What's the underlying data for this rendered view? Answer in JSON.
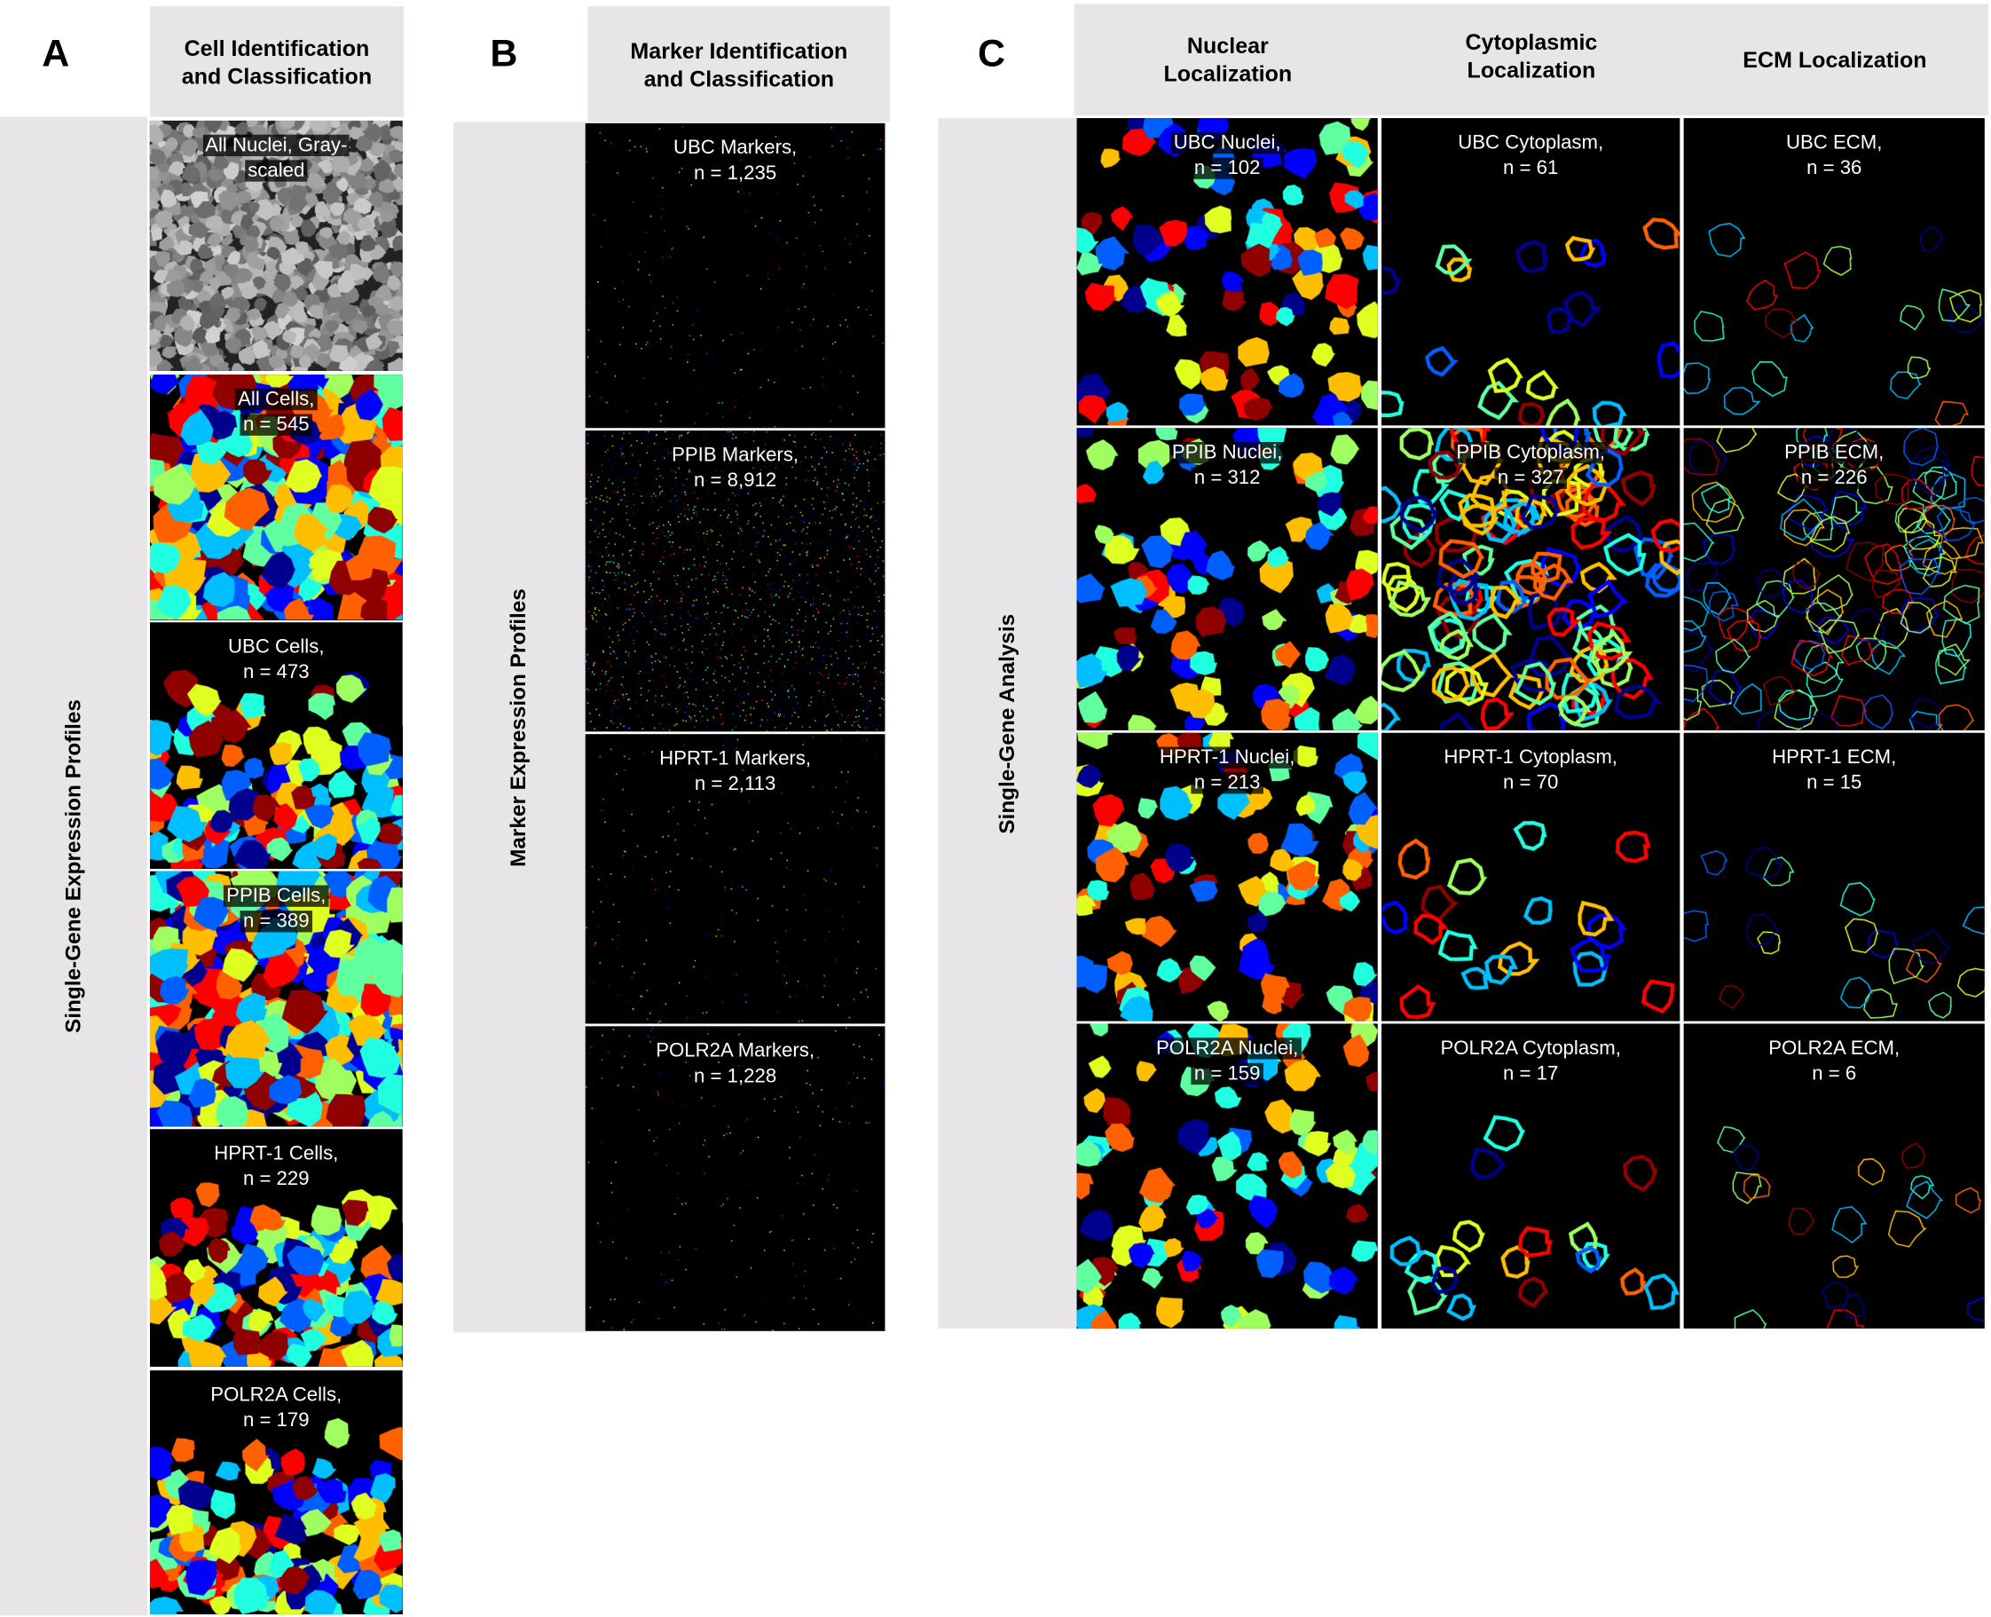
{
  "panels": {
    "A": {
      "letter": "A",
      "header": [
        "Cell Identification",
        "and Classification"
      ],
      "side_label": "Single-Gene Expression Profiles",
      "tiles": [
        {
          "line1": "All Nuclei, Gray-",
          "line2": "scaled",
          "kind": "grayscale"
        },
        {
          "line1": "All Cells,",
          "line2": "n = 545",
          "kind": "cells"
        },
        {
          "line1": "UBC Cells,",
          "line2": "n = 473",
          "kind": "sparsecells"
        },
        {
          "line1": "PPIB Cells,",
          "line2": "n = 389",
          "kind": "cells"
        },
        {
          "line1": "HPRT-1 Cells,",
          "line2": "n = 229",
          "kind": "sparsecells"
        },
        {
          "line1": "POLR2A Cells,",
          "line2": "n = 179",
          "kind": "sparsecells"
        }
      ]
    },
    "B": {
      "letter": "B",
      "header": [
        "Marker Identification",
        "and Classification"
      ],
      "side_label": "Marker Expression Profiles",
      "tiles": [
        {
          "line1": "UBC Markers,",
          "line2": "n = 1,235",
          "kind": "markers"
        },
        {
          "line1": "PPIB Markers,",
          "line2": "n = 8,912",
          "kind": "densemarkers"
        },
        {
          "line1": "HPRT-1 Markers,",
          "line2": "n = 2,113",
          "kind": "markers"
        },
        {
          "line1": "POLR2A Markers,",
          "line2": "n = 1,228",
          "kind": "markers"
        }
      ]
    },
    "C": {
      "letter": "C",
      "columns": [
        [
          "Nuclear",
          "Localization"
        ],
        [
          "Cytoplasmic",
          "Localization"
        ],
        [
          "ECM Localization",
          ""
        ]
      ],
      "side_label": "Single-Gene Analysis",
      "rows": [
        [
          {
            "line1": "UBC Nuclei,",
            "line2": "n = 102",
            "kind": "nuclei"
          },
          {
            "line1": "UBC Cytoplasm,",
            "line2": "n = 61",
            "kind": "rings"
          },
          {
            "line1": "UBC ECM,",
            "line2": "n = 36",
            "kind": "thinrings"
          }
        ],
        [
          {
            "line1": "PPIB Nuclei,",
            "line2": "n = 312",
            "kind": "nuclei"
          },
          {
            "line1": "PPIB Cytoplasm,",
            "line2": "n = 327",
            "kind": "denserings"
          },
          {
            "line1": "PPIB ECM,",
            "line2": "n = 226",
            "kind": "densethin"
          }
        ],
        [
          {
            "line1": "HPRT-1 Nuclei,",
            "line2": "n = 213",
            "kind": "nuclei"
          },
          {
            "line1": "HPRT-1 Cytoplasm,",
            "line2": "n = 70",
            "kind": "rings"
          },
          {
            "line1": "HPRT-1 ECM,",
            "line2": "n = 15",
            "kind": "thinrings"
          }
        ],
        [
          {
            "line1": "POLR2A Nuclei,",
            "line2": "n = 159",
            "kind": "nuclei"
          },
          {
            "line1": "POLR2A Cytoplasm,",
            "line2": "n = 17",
            "kind": "rings"
          },
          {
            "line1": "POLR2A ECM,",
            "line2": "n = 6",
            "kind": "thinrings"
          }
        ]
      ]
    }
  },
  "colors": {
    "panel_background": "#e7e5e7",
    "tile_background": "#000000",
    "colormap": [
      "#00008f",
      "#0000ff",
      "#0060ff",
      "#00bfff",
      "#20ffdf",
      "#60ff9f",
      "#9fff60",
      "#dfff20",
      "#ffbf00",
      "#ff6000",
      "#ff0000",
      "#8f0000"
    ]
  }
}
